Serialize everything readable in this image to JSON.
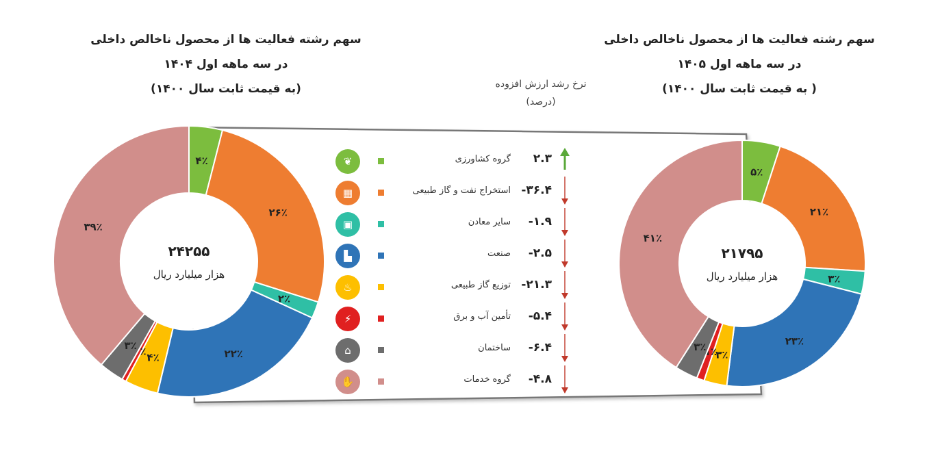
{
  "left_title": [
    "سهم رشته فعالیت ها از محصول ناخالص داخلی",
    "در سه ماهه اول ۱۴۰۴",
    "(به قیمت ثابت سال ۱۴۰۰)"
  ],
  "right_title": [
    "سهم رشته فعالیت ها از محصول ناخالص داخلی",
    "در سه ماهه اول ۱۴۰۵",
    "( به قیمت ثابت سال ۱۴۰۰)"
  ],
  "growth_header": [
    "نرخ رشد ارزش افزوده",
    "(درصد)"
  ],
  "legend": [
    {
      "label": "گروه کشاورزی",
      "value": "۲.۳",
      "direction": "up",
      "color": "#7cbd3e",
      "icon": "wheat-icon",
      "glyph": "❦"
    },
    {
      "label": "استخراج نفت و گاز طبیعی",
      "value": "-۳۶.۴",
      "direction": "down",
      "color": "#ee7d31",
      "icon": "oil-barrels-icon",
      "glyph": "▦"
    },
    {
      "label": "سایر معادن",
      "value": "-۱.۹",
      "direction": "down",
      "color": "#2fbfa5",
      "icon": "mine-cart-icon",
      "glyph": "▣"
    },
    {
      "label": "صنعت",
      "value": "-۲.۵",
      "direction": "down",
      "color": "#2f74b7",
      "icon": "factory-icon",
      "glyph": "▙"
    },
    {
      "label": "توزیع گاز طبیعی",
      "value": "-۲۱.۳",
      "direction": "down",
      "color": "#fdbf00",
      "icon": "gas-flame-icon",
      "glyph": "♨"
    },
    {
      "label": "تأمین آب و برق",
      "value": "-۵.۴",
      "direction": "down",
      "color": "#e02020",
      "icon": "electricity-icon",
      "glyph": "⚡"
    },
    {
      "label": "ساختمان",
      "value": "-۶.۴",
      "direction": "down",
      "color": "#6d6d6d",
      "icon": "construction-icon",
      "glyph": "⌂"
    },
    {
      "label": "گروه خدمات",
      "value": "-۴.۸",
      "direction": "down",
      "color": "#d18e8b",
      "icon": "services-hand-icon",
      "glyph": "✋"
    }
  ],
  "chart_data": [
    {
      "type": "pie",
      "title": "سهم رشته فعالیت ها از محصول ناخالص داخلی در سه ماهه اول ۱۴۰۴ (به قیمت ثابت سال ۱۴۰۰)",
      "center_value": "۲۴۲۵۵",
      "center_unit": "هزار میلیارد ریال",
      "categories": [
        "گروه کشاورزی",
        "استخراج نفت و گاز طبیعی",
        "سایر معادن",
        "صنعت",
        "توزیع گاز طبیعی",
        "تأمین آب و برق",
        "ساختمان",
        "گروه خدمات"
      ],
      "values": [
        4,
        26,
        2,
        22,
        4,
        0.5,
        3,
        39
      ],
      "labels": [
        "۴٪",
        "۲۶٪",
        "۲٪",
        "۲۲٪",
        "۴٪",
        "۰٪",
        "۳٪",
        "۳۹٪"
      ],
      "colors": [
        "#7cbd3e",
        "#ee7d31",
        "#2fbfa5",
        "#2f74b7",
        "#fdbf00",
        "#e02020",
        "#6d6d6d",
        "#d18e8b"
      ]
    },
    {
      "type": "pie",
      "title": "سهم رشته فعالیت ها از محصول ناخالص داخلی در سه ماهه اول ۱۴۰۵ ( به قیمت ثابت سال ۱۴۰۰)",
      "center_value": "۲۱۷۹۵",
      "center_unit": "هزار میلیارد ریال",
      "categories": [
        "گروه کشاورزی",
        "استخراج نفت و گاز طبیعی",
        "سایر معادن",
        "صنعت",
        "توزیع گاز طبیعی",
        "تأمین آب و برق",
        "ساختمان",
        "گروه خدمات"
      ],
      "values": [
        5,
        21,
        3,
        23,
        3,
        1,
        3,
        41
      ],
      "labels": [
        "۵٪",
        "۲۱٪",
        "۳٪",
        "۲۳٪",
        "۳٪",
        "۱٪",
        "۳٪",
        "۴۱٪"
      ],
      "colors": [
        "#7cbd3e",
        "#ee7d31",
        "#2fbfa5",
        "#2f74b7",
        "#fdbf00",
        "#e02020",
        "#6d6d6d",
        "#d18e8b"
      ]
    }
  ]
}
